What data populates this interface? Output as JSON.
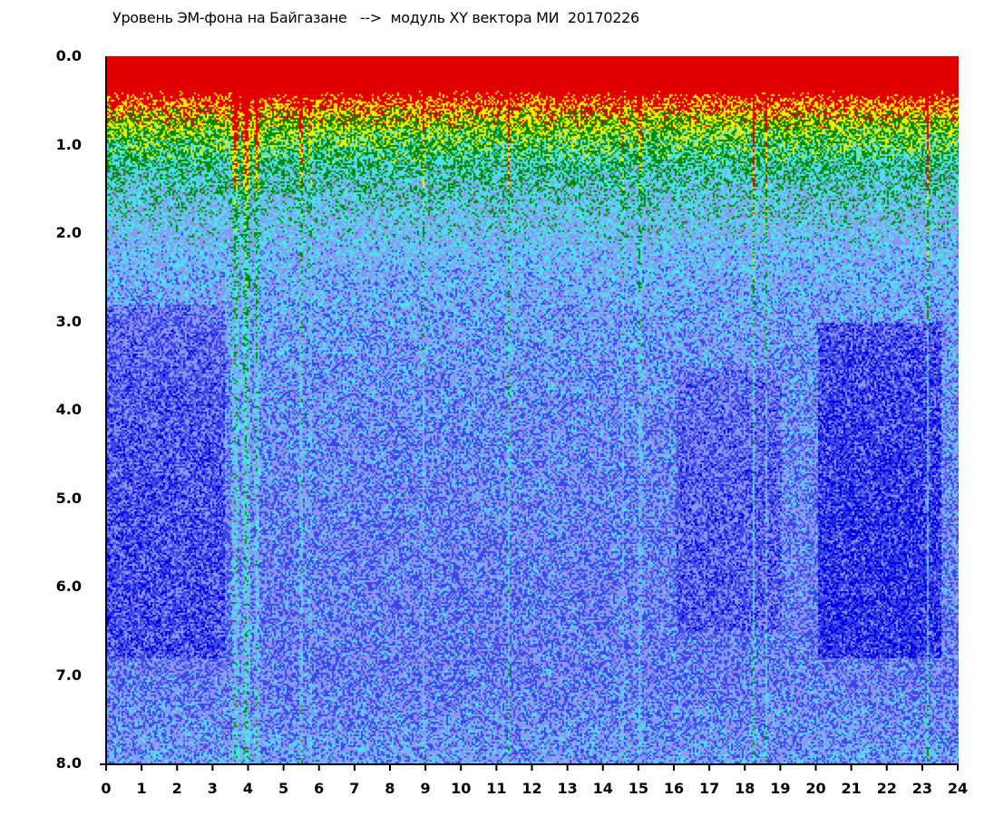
{
  "chart_data": {
    "type": "heatmap",
    "title": "Уровень ЭМ-фона на Байгазане   -->  модуль XY вектора МИ  20170226",
    "xlim": [
      0,
      24
    ],
    "ylim": [
      8.0,
      0.0
    ],
    "x_ticks": [
      "0",
      "1",
      "2",
      "3",
      "4",
      "5",
      "6",
      "7",
      "8",
      "9",
      "10",
      "11",
      "12",
      "13",
      "14",
      "15",
      "16",
      "17",
      "18",
      "19",
      "20",
      "21",
      "22",
      "23",
      "24"
    ],
    "y_ticks": [
      "0.0",
      "1.0",
      "2.0",
      "3.0",
      "4.0",
      "5.0",
      "6.0",
      "7.0",
      "8.0"
    ],
    "grid": false,
    "colormap": [
      "#0000e0",
      "#3c46e8",
      "#8c96f0",
      "#4ee0f0",
      "#008c00",
      "#f0f000",
      "#e00000"
    ]
  }
}
